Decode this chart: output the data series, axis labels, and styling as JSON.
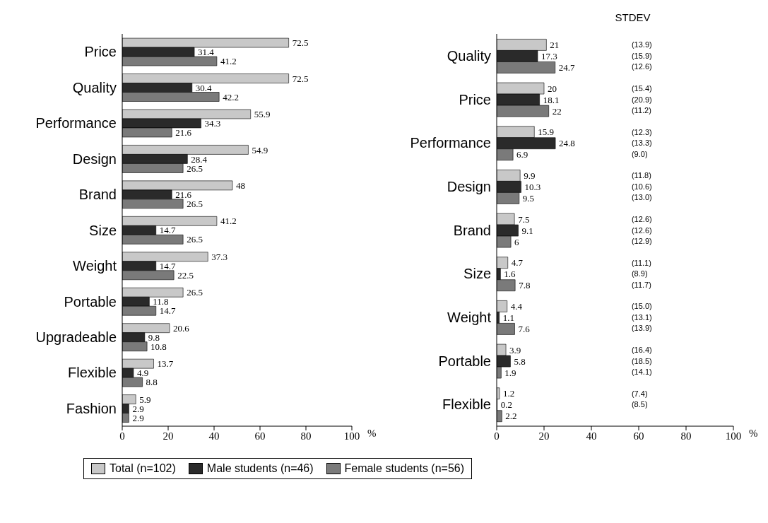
{
  "chart_data": [
    {
      "type": "bar",
      "orientation": "horizontal",
      "categories": [
        "Price",
        "Quality",
        "Performance",
        "Design",
        "Brand",
        "Size",
        "Weight",
        "Portable",
        "Upgradeable",
        "Flexible",
        "Fashion"
      ],
      "series": [
        {
          "name": "Total (n=102)",
          "color": "#c8c8c8",
          "values": [
            72.5,
            72.5,
            55.9,
            54.9,
            48,
            41.2,
            37.3,
            26.5,
            20.6,
            13.7,
            5.9
          ]
        },
        {
          "name": "Male students (n=46)",
          "color": "#2a2a2a",
          "values": [
            31.4,
            30.4,
            34.3,
            28.4,
            21.6,
            14.7,
            14.7,
            11.8,
            9.8,
            4.9,
            2.9
          ]
        },
        {
          "name": "Female students (n=56)",
          "color": "#7a7a7a",
          "values": [
            41.2,
            42.2,
            21.6,
            26.5,
            26.5,
            26.5,
            22.5,
            14.7,
            10.8,
            8.8,
            2.9
          ]
        }
      ],
      "xlim": [
        0,
        100
      ],
      "xticks": [
        0,
        20,
        40,
        60,
        80,
        100
      ],
      "xlabel": "%",
      "data_labels": true,
      "legend": "bottom"
    },
    {
      "type": "bar",
      "orientation": "horizontal",
      "categories": [
        "Quality",
        "Price",
        "Performance",
        "Design",
        "Brand",
        "Size",
        "Weight",
        "Portable",
        "Flexible"
      ],
      "series": [
        {
          "color": "#c8c8c8",
          "values": [
            21,
            20,
            15.9,
            9.9,
            7.5,
            4.7,
            4.4,
            3.9,
            1.2
          ]
        },
        {
          "color": "#2a2a2a",
          "values": [
            17.3,
            18.1,
            24.8,
            10.3,
            9.1,
            1.6,
            1.1,
            5.8,
            0.2
          ]
        },
        {
          "color": "#7a7a7a",
          "values": [
            24.7,
            22,
            6.9,
            9.5,
            6,
            7.8,
            7.6,
            1.9,
            2.2
          ]
        }
      ],
      "xlim": [
        0,
        100
      ],
      "xticks": [
        0,
        20,
        40,
        60,
        80,
        100
      ],
      "xlabel": "%",
      "data_labels": true,
      "annotations": [
        "STDEV",
        "(13.9)",
        "(15.9)",
        "(12.6)",
        "(15.4)",
        "(20.9)",
        "(11.2)",
        "(12.3)",
        "(13.3)",
        "(9.0)",
        "(11.8)",
        "(10.6)",
        "(13.0)",
        "(12.6)",
        "(12.6)",
        "(12.9)",
        "(11.1)",
        "(8.9)",
        "(11.7)",
        "(15.0)",
        "(13.1)",
        "(13.9)",
        "(16.4)",
        "(18.5)",
        "(14.1)",
        "(7.4)",
        "(8.5)"
      ]
    }
  ]
}
